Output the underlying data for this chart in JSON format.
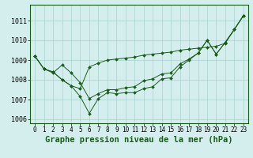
{
  "title": "Graphe pression niveau de la mer (hPa)",
  "bg_color": "#d4eeed",
  "grid_color": "#a8d4d0",
  "line_color": "#1a5c1a",
  "marker_color": "#1a5c1a",
  "xlim": [
    -0.5,
    23.5
  ],
  "ylim": [
    1005.8,
    1011.8
  ],
  "yticks": [
    1006,
    1007,
    1008,
    1009,
    1010,
    1011
  ],
  "xticks": [
    0,
    1,
    2,
    3,
    4,
    5,
    6,
    7,
    8,
    9,
    10,
    11,
    12,
    13,
    14,
    15,
    16,
    17,
    18,
    19,
    20,
    21,
    22,
    23
  ],
  "series": [
    [
      1009.2,
      1008.55,
      1008.4,
      1008.0,
      1007.7,
      1007.15,
      1006.3,
      1007.05,
      1007.35,
      1007.3,
      1007.35,
      1007.35,
      1007.55,
      1007.65,
      1008.05,
      1008.1,
      1008.65,
      1009.0,
      1009.35,
      1010.0,
      1009.3,
      1009.9,
      1010.55,
      1011.25
    ],
    [
      1009.2,
      1008.55,
      1008.4,
      1008.0,
      1007.7,
      1007.55,
      1008.65,
      1008.85,
      1009.0,
      1009.05,
      1009.1,
      1009.15,
      1009.25,
      1009.3,
      1009.35,
      1009.4,
      1009.5,
      1009.55,
      1009.6,
      1009.65,
      1009.7,
      1009.85,
      1010.55,
      1011.25
    ],
    [
      1009.2,
      1008.55,
      1008.35,
      1008.75,
      1008.35,
      1007.85,
      1007.05,
      1007.3,
      1007.5,
      1007.5,
      1007.6,
      1007.65,
      1007.95,
      1008.05,
      1008.3,
      1008.35,
      1008.8,
      1009.05,
      1009.35,
      1010.0,
      1009.3,
      1009.9,
      1010.55,
      1011.25
    ]
  ],
  "tick_fontsize": 5.5,
  "title_fontsize": 7.5
}
